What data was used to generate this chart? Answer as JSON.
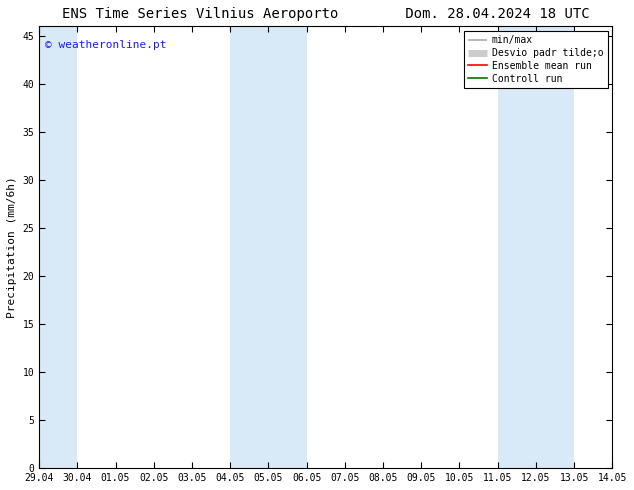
{
  "title": "ENS Time Series Vilnius Aeroporto        Dom. 28.04.2024 18 UTC",
  "ylabel": "Precipitation (mm/6h)",
  "watermark": "© weatheronline.pt",
  "watermark_color": "#1a1aff",
  "xticks": [
    "29.04",
    "30.04",
    "01.05",
    "02.05",
    "03.05",
    "04.05",
    "05.05",
    "06.05",
    "07.05",
    "08.05",
    "09.05",
    "10.05",
    "11.05",
    "12.05",
    "13.05",
    "14.05"
  ],
  "ylim": [
    0,
    46
  ],
  "yticks": [
    0,
    5,
    10,
    15,
    20,
    25,
    30,
    35,
    40,
    45
  ],
  "background_color": "#ffffff",
  "plot_bg_color": "#ffffff",
  "shaded_color": "#d8eaf8",
  "band_ranges": [
    [
      "29.04",
      "30.04"
    ],
    [
      "04.05",
      "06.05"
    ],
    [
      "11.05",
      "13.05"
    ]
  ],
  "legend_entries": [
    {
      "label": "min/max",
      "color": "#aaaaaa",
      "lw": 1.2
    },
    {
      "label": "Desvio padr tilde;o",
      "color": "#cccccc",
      "lw": 5
    },
    {
      "label": "Ensemble mean run",
      "color": "#ff0000",
      "lw": 1.2
    },
    {
      "label": "Controll run",
      "color": "#007700",
      "lw": 1.2
    }
  ],
  "title_fontsize": 10,
  "tick_fontsize": 7,
  "legend_fontsize": 7,
  "ylabel_fontsize": 8
}
